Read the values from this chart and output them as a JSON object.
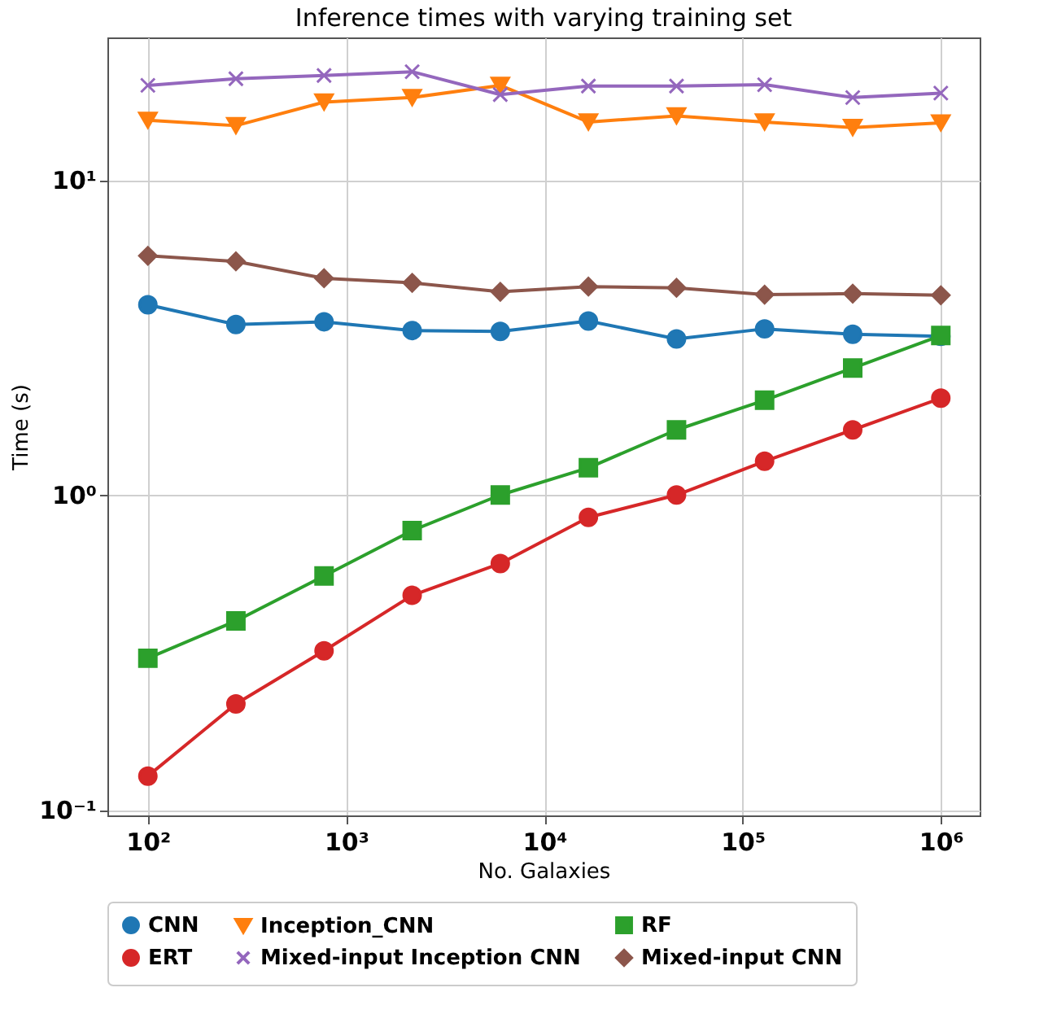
{
  "chart_data": {
    "type": "line",
    "title": "Inference times with varying training set",
    "xlabel": "No.  Galaxies",
    "ylabel": "Time (s)",
    "x": [
      100,
      278,
      774,
      2154,
      5995,
      16681,
      46416,
      129155,
      359381,
      1000000
    ],
    "series": [
      {
        "name": "CNN",
        "color": "#1f77b4",
        "marker": "circle",
        "values": [
          4.02,
          3.48,
          3.55,
          3.33,
          3.31,
          3.57,
          3.13,
          3.37,
          3.24,
          3.19
        ]
      },
      {
        "name": "Inception_CNN",
        "color": "#ff7f0e",
        "marker": "triangle",
        "values": [
          15.5,
          14.9,
          17.7,
          18.3,
          20.0,
          15.3,
          16.0,
          15.3,
          14.7,
          15.2
        ]
      },
      {
        "name": "RF",
        "color": "#2ca02c",
        "marker": "square",
        "values": [
          0.303,
          0.398,
          0.553,
          0.771,
          1.0,
          1.22,
          1.61,
          2.0,
          2.53,
          3.21
        ]
      },
      {
        "name": "ERT",
        "color": "#d62728",
        "marker": "circle",
        "values": [
          0.128,
          0.217,
          0.32,
          0.48,
          0.606,
          0.849,
          1.0,
          1.28,
          1.61,
          2.03
        ]
      },
      {
        "name": "Mixed-input Inception CNN",
        "color": "#9467bd",
        "marker": "cross",
        "values": [
          20.0,
          21.0,
          21.5,
          22.1,
          18.7,
          19.9,
          19.9,
          20.1,
          18.3,
          18.9
        ]
      },
      {
        "name": "Mixed-input CNN",
        "color": "#8c564b",
        "marker": "diamond",
        "values": [
          5.75,
          5.52,
          4.88,
          4.72,
          4.42,
          4.59,
          4.55,
          4.33,
          4.36,
          4.31
        ]
      }
    ],
    "log": "xy",
    "xlim": [
      62.5,
      1570000
    ],
    "ylim": [
      0.096,
      28.4
    ],
    "xticks": [
      {
        "value": 100,
        "label": "10²"
      },
      {
        "value": 1000,
        "label": "10³"
      },
      {
        "value": 10000,
        "label": "10⁴"
      },
      {
        "value": 100000,
        "label": "10⁵"
      },
      {
        "value": 1000000,
        "label": "10⁶"
      }
    ],
    "yticks": [
      {
        "value": 0.1,
        "label": "10⁻¹"
      },
      {
        "value": 1,
        "label": "10⁰"
      },
      {
        "value": 10,
        "label": "10¹"
      }
    ],
    "grid": true,
    "legend": "bottom",
    "line_style": "solid"
  }
}
